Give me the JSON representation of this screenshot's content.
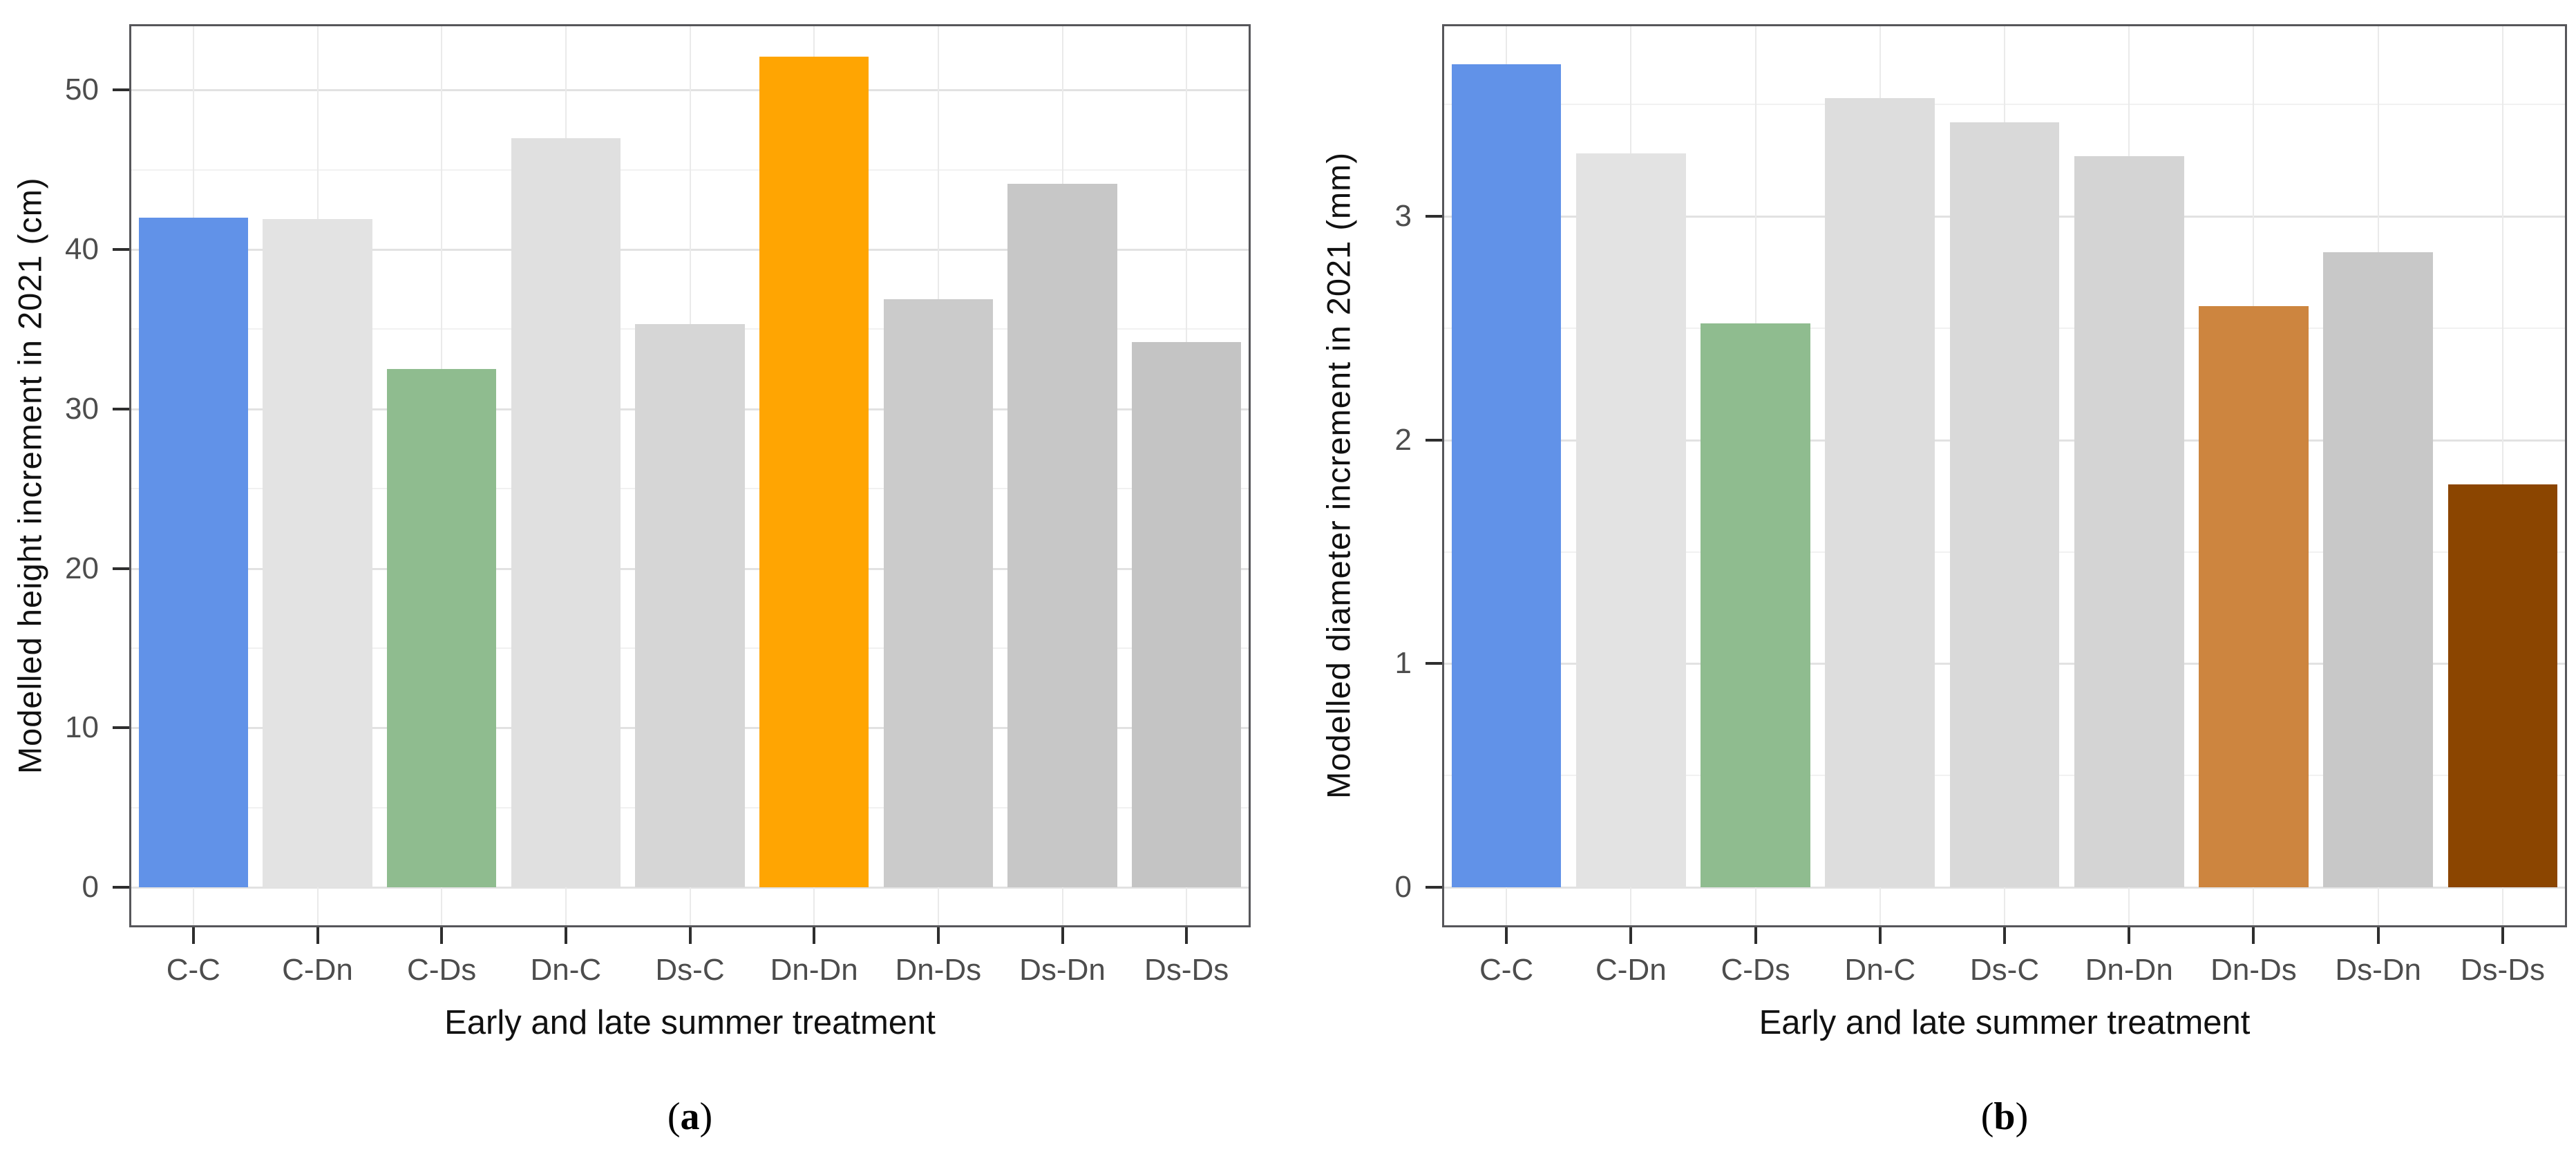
{
  "figure": {
    "background": "#ffffff",
    "panel_border_color": "#56565a",
    "grid_major_color": "#e2e2e2",
    "grid_minor_color": "#f1f1f1",
    "tick_color": "#2e2e2e",
    "tick_label_color": "#4d4d4d",
    "axis_title_color": "#111111"
  },
  "chart_data": [
    {
      "id": "a",
      "type": "bar",
      "caption": {
        "open": "(",
        "letter": "a",
        "close": ")"
      },
      "xlabel": "Early and late summer treatment",
      "ylabel": "Modelled height increment in 2021 (cm)",
      "categories": [
        "C-C",
        "C-Dn",
        "C-Ds",
        "Dn-C",
        "Ds-C",
        "Dn-Dn",
        "Dn-Ds",
        "Ds-Dn",
        "Ds-Ds"
      ],
      "values": [
        42.0,
        41.9,
        32.5,
        47.0,
        35.3,
        52.1,
        36.9,
        44.1,
        34.2
      ],
      "bar_colors": [
        "#6192e8",
        "#e3e3e3",
        "#8fbc8f",
        "#e0e0e0",
        "#d6d6d6",
        "#ffa502",
        "#cbcbcb",
        "#c7c7c7",
        "#c4c4c4"
      ],
      "yticks": [
        0,
        10,
        20,
        30,
        40,
        50
      ],
      "ylim": [
        0,
        54
      ],
      "minor_step": 5,
      "grid": true,
      "legend": "none"
    },
    {
      "id": "b",
      "type": "bar",
      "caption": {
        "open": "(",
        "letter": "b",
        "close": ")"
      },
      "xlabel": "Early and late summer treatment",
      "ylabel": "Modelled diameter increment in 2021 (mm)",
      "categories": [
        "C-C",
        "C-Dn",
        "C-Ds",
        "Dn-C",
        "Ds-C",
        "Dn-Dn",
        "Dn-Ds",
        "Ds-Dn",
        "Ds-Ds"
      ],
      "values": [
        3.68,
        3.28,
        2.52,
        3.53,
        3.42,
        3.27,
        2.6,
        2.84,
        1.8
      ],
      "bar_colors": [
        "#6192e8",
        "#e3e3e3",
        "#8fbc8f",
        "#dddddd",
        "#d9d9d9",
        "#d4d4d4",
        "#cd853f",
        "#c8c8c8",
        "#8b4500"
      ],
      "yticks": [
        0,
        1,
        2,
        3
      ],
      "ylim": [
        0,
        3.85
      ],
      "minor_step": 0.5,
      "grid": true,
      "legend": "none"
    }
  ]
}
